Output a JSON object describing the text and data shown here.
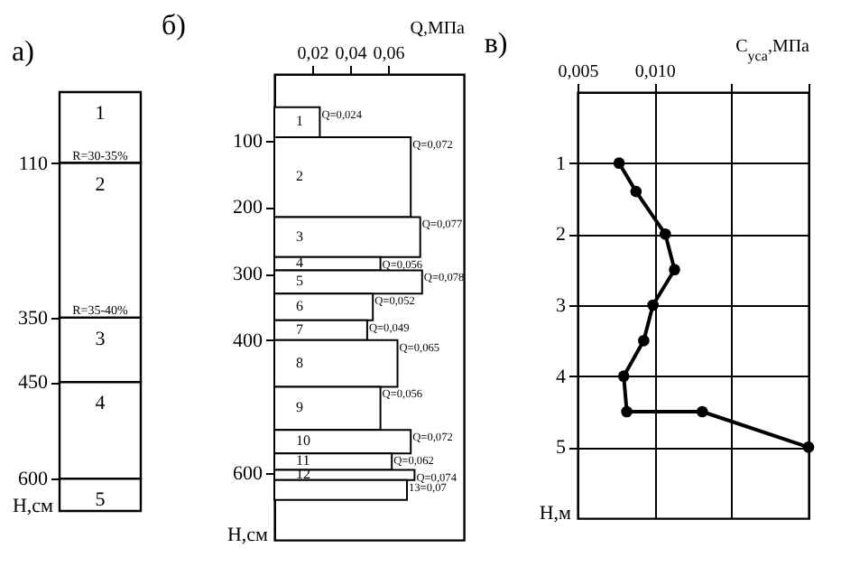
{
  "chart_data": [
    {
      "type": "bar",
      "title": "а)",
      "stacked": true,
      "categories": [
        null
      ],
      "ylabel": "H,см",
      "ylim": [
        650,
        0
      ],
      "yticks": [
        110,
        350,
        450,
        600
      ],
      "legend": false,
      "series": [
        {
          "name": "1",
          "color": "#ffffff",
          "values": [
            110
          ]
        },
        {
          "name": "2",
          "color": "#ffffff",
          "values": [
            240
          ]
        },
        {
          "name": "3",
          "color": "#ffffff",
          "values": [
            100
          ]
        },
        {
          "name": "4",
          "color": "#ffffff",
          "values": [
            150
          ]
        },
        {
          "name": "5",
          "color": "#ffffff",
          "values": [
            50
          ]
        }
      ],
      "annotations": [
        {
          "text": "R=30-35%",
          "y": 110
        },
        {
          "text": "R=35-40%",
          "y": 350
        }
      ]
    },
    {
      "type": "histogram",
      "title": "б)",
      "orientation": "horizontal",
      "color": "#ffffff",
      "bins": [
        50,
        95,
        215,
        275,
        295,
        330,
        370,
        400,
        470,
        535,
        570,
        595,
        610,
        640
      ],
      "values": [
        0.024,
        0.072,
        0.077,
        0.056,
        0.078,
        0.052,
        0.049,
        0.065,
        0.056,
        0.072,
        0.062,
        0.074,
        0.07
      ],
      "value_labels": [
        "Q=0,024",
        "Q=0,072",
        "Q=0,077",
        "Q=0,056",
        "Q=0,078",
        "Q=0,052",
        "Q=0,049",
        "Q=0,065",
        "Q=0,056",
        "Q=0,072",
        "Q=0,062",
        "Q=0,074",
        "13=0,07"
      ],
      "xlabel": "Q,МПа",
      "ylabel": "Н,см",
      "xlim": [
        0,
        0.1
      ],
      "xticks": [
        {
          "value": 0.02,
          "label": "0,02"
        },
        {
          "value": 0.04,
          "label": "0,04"
        },
        {
          "value": 0.06,
          "label": "0,06"
        }
      ],
      "ylim": [
        700,
        0
      ],
      "yticks": [
        100,
        200,
        300,
        400,
        600
      ],
      "annotations": [
        "1",
        "2",
        "3",
        "4",
        "5",
        "6",
        "7",
        "8",
        "9",
        "10",
        "11",
        "12"
      ]
    },
    {
      "type": "line",
      "title": "в)",
      "color": "#000000",
      "marker": "circle",
      "grid": true,
      "x": [
        0.0077,
        0.0088,
        0.0107,
        0.0113,
        0.0099,
        0.0093,
        0.008,
        0.0082,
        0.0131,
        0.02
      ],
      "values": [
        1,
        1.4,
        2,
        2.5,
        3,
        3.5,
        4,
        4.5,
        4.5,
        5
      ],
      "xlabel": "C$_{уса}$,МПа",
      "ylabel": "Н,м",
      "xlim": [
        0.005,
        0.02
      ],
      "xticks": [
        {
          "value": 0.005,
          "label": "0,005"
        },
        {
          "value": 0.01,
          "label": "0,010"
        },
        {
          "value": 0.015,
          "label": null
        },
        {
          "value": 0.02,
          "label": null
        }
      ],
      "ylim": [
        6,
        0
      ],
      "yticks": [
        1,
        2,
        3,
        4,
        5
      ]
    }
  ]
}
